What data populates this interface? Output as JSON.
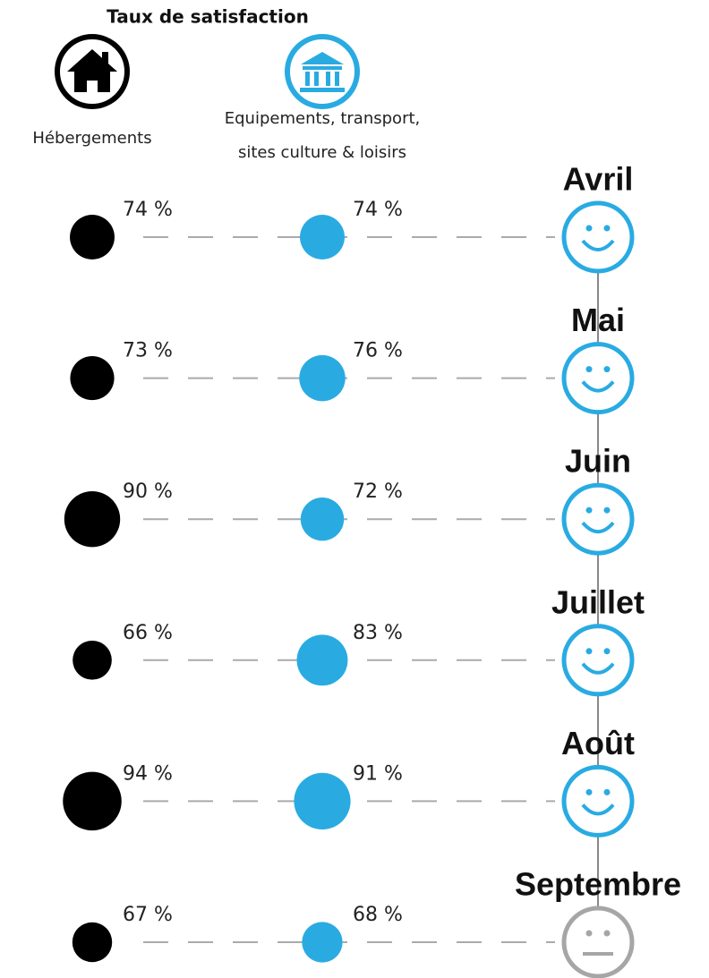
{
  "chart_data": {
    "type": "bubble",
    "title": "Taux de satisfaction",
    "categories": [
      "Avril",
      "Mai",
      "Juin",
      "Juillet",
      "Août",
      "Septembre"
    ],
    "series": [
      {
        "name": "Hébergements",
        "color": "#000000",
        "values": [
          74,
          73,
          90,
          66,
          94,
          67
        ],
        "value_labels": [
          "74 %",
          "73 %",
          "90 %",
          "66 %",
          "94 %",
          "67 %"
        ]
      },
      {
        "name": [
          "Equipements, transport,",
          "sites culture & loisirs"
        ],
        "color": "#29abe2",
        "values": [
          74,
          76,
          72,
          83,
          91,
          68
        ],
        "value_labels": [
          "74 %",
          "76 %",
          "72 %",
          "83 %",
          "91 %",
          "68 %"
        ]
      }
    ],
    "moods": [
      "happy",
      "happy",
      "happy",
      "happy",
      "happy",
      "neutral"
    ],
    "mood_colors": {
      "happy": "#29abe2",
      "neutral": "#a6a6a6"
    }
  }
}
